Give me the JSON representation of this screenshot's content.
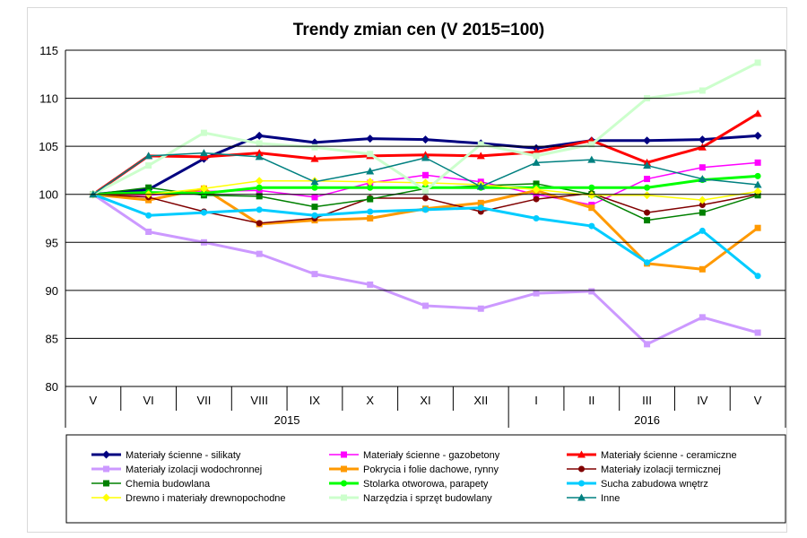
{
  "chart_data": {
    "type": "line",
    "title": "Trendy zmian cen (V 2015=100)",
    "categories": [
      "V",
      "VI",
      "VII",
      "VIII",
      "IX",
      "X",
      "XI",
      "XII",
      "I",
      "II",
      "III",
      "IV",
      "V"
    ],
    "year_groups": [
      {
        "label": "2015",
        "from": 0,
        "to": 7
      },
      {
        "label": "2016",
        "from": 8,
        "to": 12
      }
    ],
    "ylim": [
      80,
      115
    ],
    "yticks": [
      80,
      85,
      90,
      95,
      100,
      105,
      110,
      115
    ],
    "grid": true,
    "legend_position": "bottom",
    "series": [
      {
        "name": "Materiały ścienne - silikaty",
        "color": "#000080",
        "marker": "diamond",
        "width": 3,
        "values": [
          100,
          100.5,
          103.7,
          106.1,
          105.4,
          105.8,
          105.7,
          105.3,
          104.8,
          105.6,
          105.6,
          105.7,
          106.1
        ]
      },
      {
        "name": "Materiały ścienne - gazobetony",
        "color": "#ff00ff",
        "marker": "square",
        "width": 1.5,
        "values": [
          100,
          99.9,
          100.3,
          100.4,
          99.7,
          101.2,
          102.0,
          101.3,
          100.0,
          98.9,
          101.6,
          102.8,
          103.3
        ]
      },
      {
        "name": "Materiały ścienne - ceramiczne",
        "color": "#ff0000",
        "marker": "triangle",
        "width": 3,
        "values": [
          100,
          104.0,
          103.9,
          104.3,
          103.7,
          104.0,
          104.1,
          104.0,
          104.4,
          105.6,
          103.3,
          104.9,
          108.4
        ]
      },
      {
        "name": "Materiały izolacji wodochronnej",
        "color": "#cc99ff",
        "marker": "square",
        "width": 3,
        "values": [
          100,
          96.1,
          95.0,
          93.8,
          91.7,
          90.6,
          88.4,
          88.1,
          89.7,
          89.9,
          84.4,
          87.2,
          85.6
        ]
      },
      {
        "name": "Pokrycia i folie dachowe, rynny",
        "color": "#ff9900",
        "marker": "square",
        "width": 3,
        "values": [
          100,
          99.4,
          100.6,
          96.9,
          97.3,
          97.5,
          98.5,
          99.1,
          100.4,
          98.6,
          92.8,
          92.2,
          96.5
        ]
      },
      {
        "name": "Materiały izolacji termicznej",
        "color": "#800000",
        "marker": "circle",
        "width": 1.5,
        "values": [
          100,
          99.7,
          98.2,
          97.0,
          97.5,
          99.6,
          99.6,
          98.2,
          99.5,
          100.1,
          98.1,
          98.9,
          100.0
        ]
      },
      {
        "name": "Chemia budowlana",
        "color": "#008000",
        "marker": "square",
        "width": 1.5,
        "values": [
          100,
          100.7,
          99.9,
          99.8,
          98.7,
          99.5,
          100.6,
          100.9,
          101.1,
          100.0,
          97.3,
          98.1,
          99.9
        ]
      },
      {
        "name": "Stolarka otworowa, parapety",
        "color": "#00ff00",
        "marker": "circle",
        "width": 3,
        "values": [
          100,
          100.2,
          100.1,
          100.7,
          100.7,
          100.7,
          100.7,
          100.7,
          100.7,
          100.7,
          100.7,
          101.5,
          101.9
        ]
      },
      {
        "name": "Sucha zabudowa wnętrz",
        "color": "#00ccff",
        "marker": "circle",
        "width": 3,
        "values": [
          100,
          97.8,
          98.1,
          98.4,
          97.8,
          98.2,
          98.4,
          98.6,
          97.5,
          96.7,
          92.9,
          96.2,
          91.5
        ]
      },
      {
        "name": "Drewno i materiały drewnopochodne",
        "color": "#ffff00",
        "marker": "diamond",
        "width": 1.5,
        "values": [
          100,
          100.0,
          100.6,
          101.4,
          101.4,
          101.3,
          101.2,
          101.0,
          100.5,
          99.9,
          99.9,
          99.4,
          100.3
        ]
      },
      {
        "name": "Narzędzia i sprzęt budowlany",
        "color": "#ccffcc",
        "marker": "square",
        "width": 3,
        "values": [
          100,
          103.0,
          106.4,
          105.3,
          104.9,
          104.2,
          100.4,
          105.2,
          104.0,
          105.2,
          110.0,
          110.8,
          113.7
        ]
      },
      {
        "name": "Inne",
        "color": "#008080",
        "marker": "triangle",
        "width": 1.5,
        "values": [
          100,
          104.0,
          104.3,
          103.9,
          101.3,
          102.4,
          103.8,
          100.8,
          103.3,
          103.6,
          103.0,
          101.6,
          101.0
        ]
      }
    ]
  }
}
